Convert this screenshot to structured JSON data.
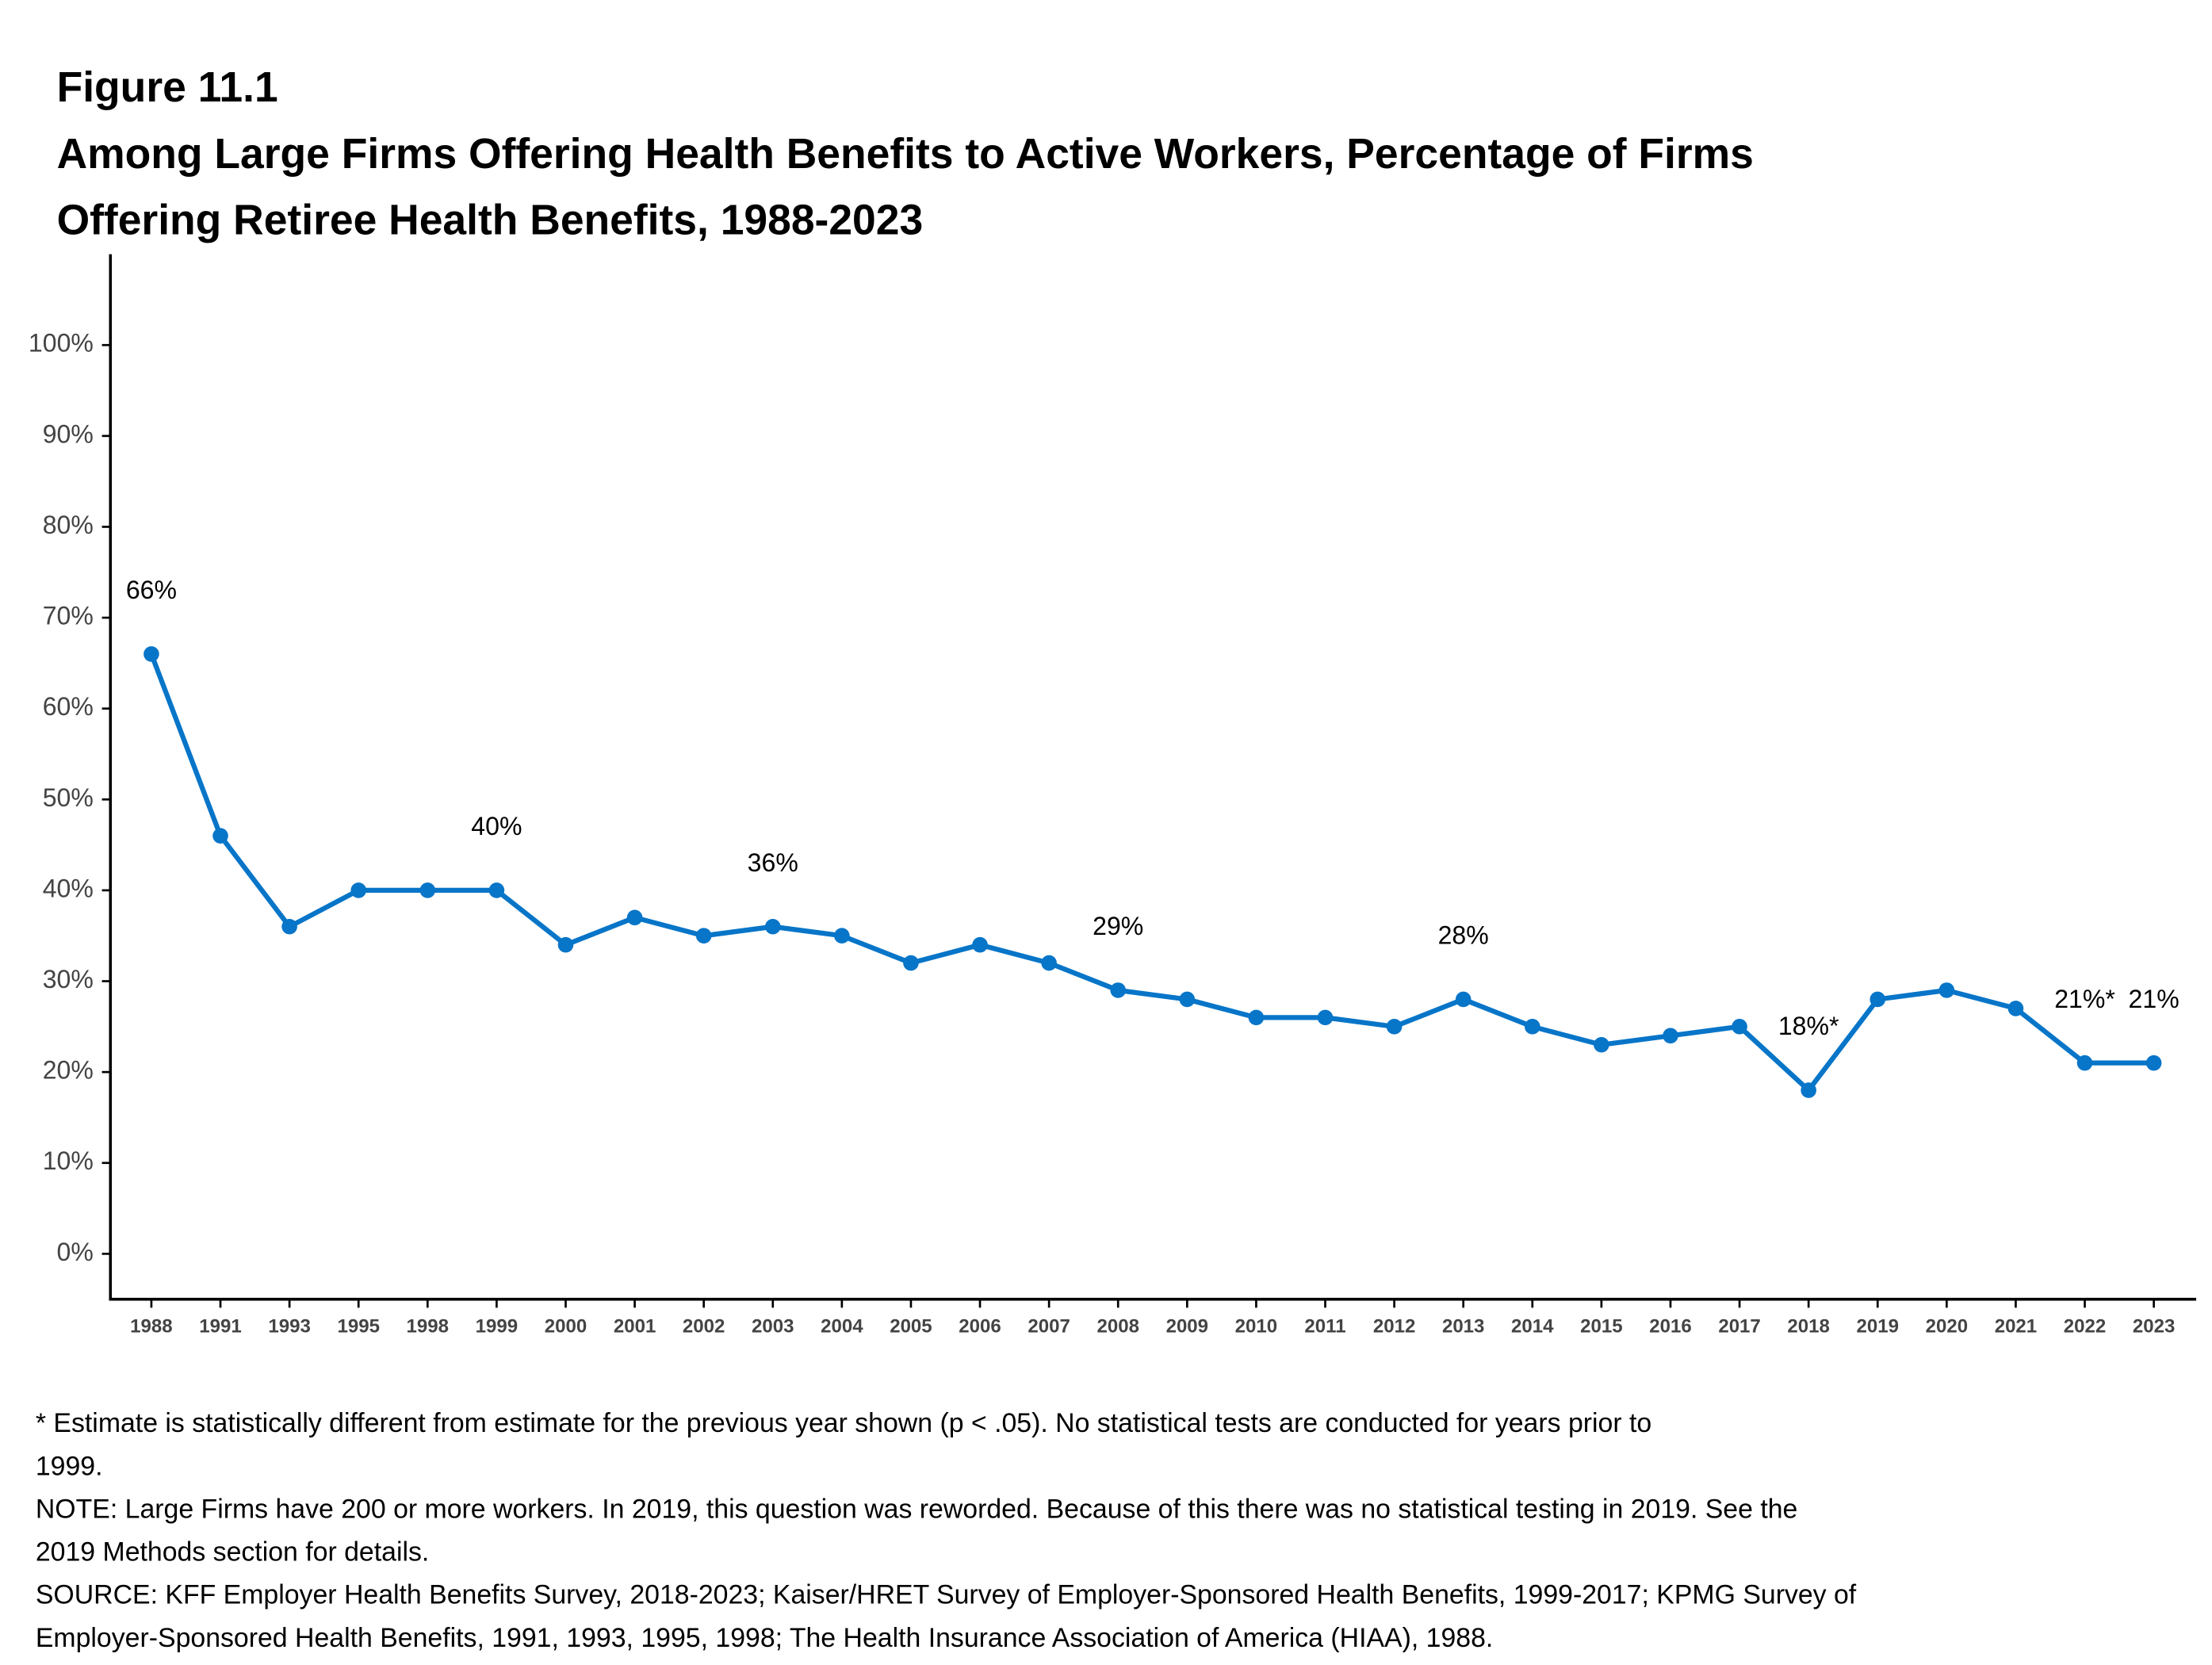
{
  "chart_data": {
    "type": "line",
    "figure_label": "Figure 11.1",
    "title": [
      "Among Large Firms Offering Health Benefits to Active Workers, Percentage of Firms",
      "Offering Retiree Health Benefits, 1988-2023"
    ],
    "categories": [
      "1988",
      "1991",
      "1993",
      "1995",
      "1998",
      "1999",
      "2000",
      "2001",
      "2002",
      "2003",
      "2004",
      "2005",
      "2006",
      "2007",
      "2008",
      "2009",
      "2010",
      "2011",
      "2012",
      "2013",
      "2014",
      "2015",
      "2016",
      "2017",
      "2018",
      "2019",
      "2020",
      "2021",
      "2022",
      "2023"
    ],
    "values": [
      66,
      46,
      36,
      40,
      40,
      40,
      34,
      37,
      35,
      36,
      35,
      32,
      34,
      32,
      29,
      28,
      26,
      26,
      25,
      28,
      25,
      23,
      24,
      25,
      18,
      28,
      29,
      27,
      21,
      21
    ],
    "value_labels": [
      "66%",
      null,
      null,
      null,
      null,
      "40%",
      null,
      null,
      null,
      "36%",
      null,
      null,
      null,
      null,
      "29%",
      null,
      null,
      null,
      null,
      "28%",
      null,
      null,
      null,
      null,
      "18%*",
      null,
      null,
      null,
      "21%*",
      "21%"
    ],
    "color": "#0775c8",
    "ylim": [
      -5,
      110
    ],
    "yticks": [
      {
        "value": 0,
        "label": "0%"
      },
      {
        "value": 10,
        "label": "10%"
      },
      {
        "value": 20,
        "label": "20%"
      },
      {
        "value": 30,
        "label": "30%"
      },
      {
        "value": 40,
        "label": "40%"
      },
      {
        "value": 50,
        "label": "50%"
      },
      {
        "value": 60,
        "label": "60%"
      },
      {
        "value": 70,
        "label": "70%"
      },
      {
        "value": 80,
        "label": "80%"
      },
      {
        "value": 90,
        "label": "90%"
      },
      {
        "value": 100,
        "label": "100%"
      }
    ],
    "grid": false,
    "notes": [
      "* Estimate is statistically different from estimate for the previous year shown (p < .05). No statistical tests are conducted for years prior to",
      "1999.",
      "NOTE: Large Firms have 200 or more workers.  In 2019, this question was reworded.  Because of this there was no statistical testing in 2019.  See the",
      "2019 Methods section for details.",
      "SOURCE: KFF Employer Health Benefits Survey, 2018-2023; Kaiser/HRET Survey of Employer-Sponsored Health Benefits, 1999-2017; KPMG Survey of",
      "Employer-Sponsored Health Benefits, 1991, 1993, 1995, 1998; The Health Insurance Association of America (HIAA), 1988."
    ]
  }
}
